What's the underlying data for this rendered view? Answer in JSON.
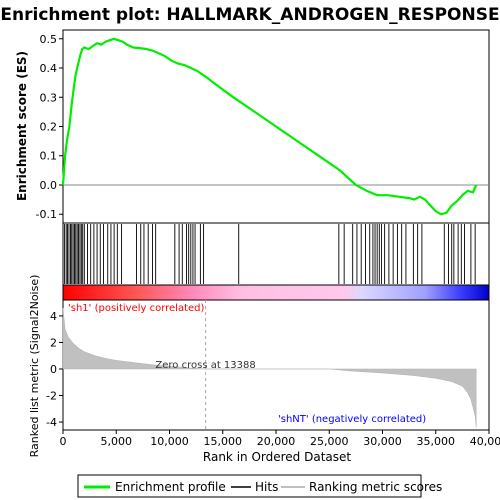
{
  "chart_data": {
    "type": "line",
    "title": "Enrichment plot: HALLMARK_ANDROGEN_RESPONSE",
    "ylabel_top": "Enrichment score (ES)",
    "ylabel_bottom": "Ranked list metric (Signal2Noise)",
    "xlabel": "Rank in Ordered Dataset",
    "xlim": [
      0,
      40000
    ],
    "x_ticks": [
      0,
      5000,
      10000,
      15000,
      20000,
      25000,
      30000,
      35000,
      40000
    ],
    "x_tick_labels": [
      "0",
      "5,000",
      "10,000",
      "15,000",
      "20,000",
      "25,000",
      "30,000",
      "35,000",
      "40,000"
    ],
    "es_ylim": [
      -0.13,
      0.53
    ],
    "es_ticks": [
      -0.1,
      0.0,
      0.1,
      0.2,
      0.3,
      0.4,
      0.5
    ],
    "es_tick_labels": [
      "-0.1",
      "0.0",
      "0.1",
      "0.2",
      "0.3",
      "0.4",
      "0.5"
    ],
    "metric_ylim": [
      -4.6,
      5.2
    ],
    "metric_ticks": [
      -4,
      -2,
      0,
      2,
      4
    ],
    "metric_tick_labels": [
      "-4",
      "-2",
      "0",
      "2",
      "4"
    ],
    "series": [
      {
        "name": "Enrichment profile",
        "color": "#00ff00",
        "x": [
          0,
          200,
          400,
          600,
          800,
          1000,
          1200,
          1400,
          1600,
          1800,
          2000,
          2400,
          2800,
          3200,
          3600,
          4000,
          4400,
          4800,
          5200,
          5600,
          6000,
          6600,
          7200,
          7800,
          8400,
          9000,
          9600,
          10200,
          10800,
          11400,
          12000,
          12600,
          13400,
          14500,
          16000,
          18000,
          20000,
          22000,
          24000,
          26000,
          27500,
          28500,
          29500,
          30500,
          31500,
          32500,
          33000,
          33500,
          34000,
          34500,
          35000,
          35500,
          36000,
          36500,
          37000,
          37500,
          38000,
          38500,
          38800
        ],
        "values": [
          0.0,
          0.1,
          0.16,
          0.2,
          0.27,
          0.33,
          0.38,
          0.41,
          0.44,
          0.465,
          0.47,
          0.465,
          0.475,
          0.485,
          0.48,
          0.49,
          0.495,
          0.5,
          0.495,
          0.49,
          0.48,
          0.47,
          0.468,
          0.465,
          0.46,
          0.45,
          0.44,
          0.425,
          0.415,
          0.41,
          0.4,
          0.39,
          0.37,
          0.34,
          0.3,
          0.25,
          0.2,
          0.15,
          0.1,
          0.05,
          0.0,
          -0.02,
          -0.035,
          -0.035,
          -0.04,
          -0.045,
          -0.05,
          -0.04,
          -0.05,
          -0.07,
          -0.09,
          -0.1,
          -0.095,
          -0.07,
          -0.055,
          -0.035,
          -0.02,
          -0.025,
          0.0
        ]
      },
      {
        "name": "Hits",
        "color": "#000000",
        "x": [
          150,
          300,
          420,
          560,
          700,
          820,
          950,
          1080,
          1200,
          1330,
          1460,
          1590,
          1720,
          1850,
          2000,
          2300,
          2600,
          2900,
          3200,
          3500,
          3800,
          4200,
          4500,
          4800,
          5100,
          5500,
          6900,
          7300,
          7600,
          8000,
          8400,
          8700,
          10500,
          10900,
          11200,
          11600,
          11800,
          12000,
          12200,
          12400,
          12900,
          13200,
          16500,
          25900,
          26400,
          27200,
          27600,
          28000,
          28400,
          28800,
          29100,
          29300,
          29500,
          29700,
          29900,
          30200,
          30600,
          31000,
          31400,
          31800,
          32200,
          32900,
          33300,
          33700,
          35800,
          36200,
          36500,
          36700,
          37100,
          37400,
          37700,
          38300,
          38700
        ]
      },
      {
        "name": "Ranking metric scores",
        "color": "#c0c0c0",
        "x": [
          0,
          200,
          500,
          1000,
          1500,
          2000,
          3000,
          4000,
          5000,
          6000,
          7000,
          8000,
          9000,
          10000,
          11000,
          12000,
          13388,
          15000,
          20000,
          25000,
          27000,
          30000,
          33000,
          35000,
          36500,
          37500,
          38000,
          38300,
          38500,
          38700,
          38800
        ],
        "values": [
          4.6,
          3.0,
          2.4,
          1.9,
          1.55,
          1.3,
          1.0,
          0.8,
          0.65,
          0.55,
          0.45,
          0.35,
          0.27,
          0.2,
          0.14,
          0.07,
          0.0,
          0.0,
          0.0,
          0.0,
          -0.15,
          -0.3,
          -0.5,
          -0.7,
          -0.95,
          -1.3,
          -1.8,
          -2.3,
          -2.9,
          -3.6,
          -4.4
        ]
      }
    ],
    "annotations": {
      "positive": "'sh1' (positively correlated)",
      "negative": "'shNT' (negatively correlated)",
      "zero_cross": "Zero cross at 13388",
      "zero_cross_x": 13388
    },
    "legend_position": "bottom"
  },
  "colors": {
    "positive_text": "#ff0000",
    "negative_text": "#0000ff",
    "bar_start": "#ff0000",
    "bar_mid": "#ff99cc",
    "bar_end": "#0000ff"
  }
}
